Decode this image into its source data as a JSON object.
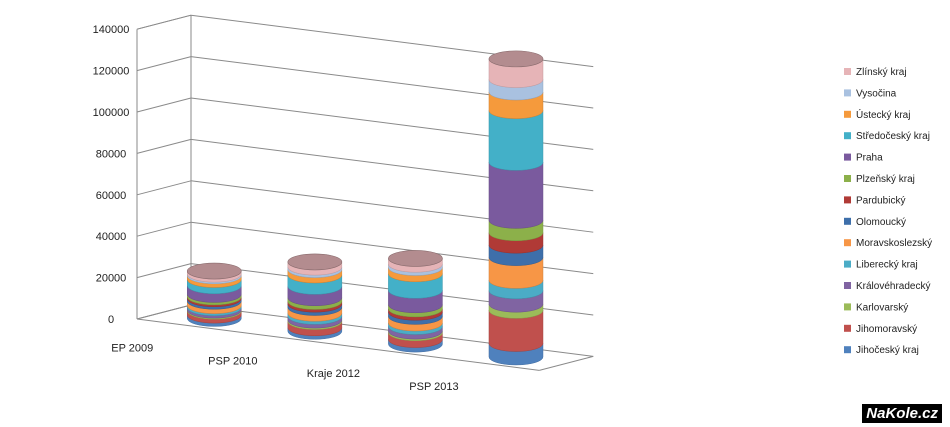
{
  "chart_data": {
    "type": "bar",
    "style": "3d-stacked-cylinder",
    "title": "",
    "xlabel": "",
    "ylabel": "",
    "ylim": [
      0,
      140000
    ],
    "y_ticks": [
      0,
      20000,
      40000,
      60000,
      80000,
      100000,
      120000,
      140000
    ],
    "grid": true,
    "legend_position": "right",
    "categories": [
      "EP 2009",
      "PSP 2010",
      "Kraje 2012",
      "PSP 2013"
    ],
    "series": [
      {
        "name": "Jihočeský kraj",
        "color": "#4f81bd",
        "values": [
          1600,
          1700,
          2200,
          6500
        ]
      },
      {
        "name": "Jihomoravský",
        "color": "#c0504d",
        "values": [
          1900,
          3000,
          3300,
          16000
        ]
      },
      {
        "name": "Karlovarský",
        "color": "#9bbb59",
        "values": [
          500,
          700,
          800,
          3000
        ]
      },
      {
        "name": "Královéhradecký",
        "color": "#8064a2",
        "values": [
          1200,
          1800,
          2200,
          6500
        ]
      },
      {
        "name": "Liberecký kraj",
        "color": "#4bacc6",
        "values": [
          1000,
          1500,
          1700,
          5000
        ]
      },
      {
        "name": "Moravskoslezský",
        "color": "#f79646",
        "values": [
          2100,
          2800,
          3200,
          11000
        ]
      },
      {
        "name": "Olomoucký",
        "color": "#3e6faa",
        "values": [
          1200,
          1600,
          2000,
          6000
        ]
      },
      {
        "name": "Pardubický",
        "color": "#b03a36",
        "values": [
          900,
          1300,
          1600,
          6000
        ]
      },
      {
        "name": "Plzeňský kraj",
        "color": "#8cb04a",
        "values": [
          1200,
          1800,
          2000,
          6000
        ]
      },
      {
        "name": "Praha",
        "color": "#7a5a9e",
        "values": [
          4200,
          5500,
          7000,
          28000
        ]
      },
      {
        "name": "Středočeský kraj",
        "color": "#43b0c8",
        "values": [
          3000,
          5500,
          8000,
          25000
        ]
      },
      {
        "name": "Ústecký kraj",
        "color": "#f59a3c",
        "values": [
          1800,
          2600,
          3000,
          9000
        ]
      },
      {
        "name": "Vysočina",
        "color": "#a9c1e0",
        "values": [
          800,
          1200,
          1600,
          6000
        ]
      },
      {
        "name": "Zlínský kraj",
        "color": "#e6b4b7",
        "values": [
          1500,
          2500,
          2800,
          10000
        ]
      }
    ]
  },
  "watermark": "NaKole.cz"
}
